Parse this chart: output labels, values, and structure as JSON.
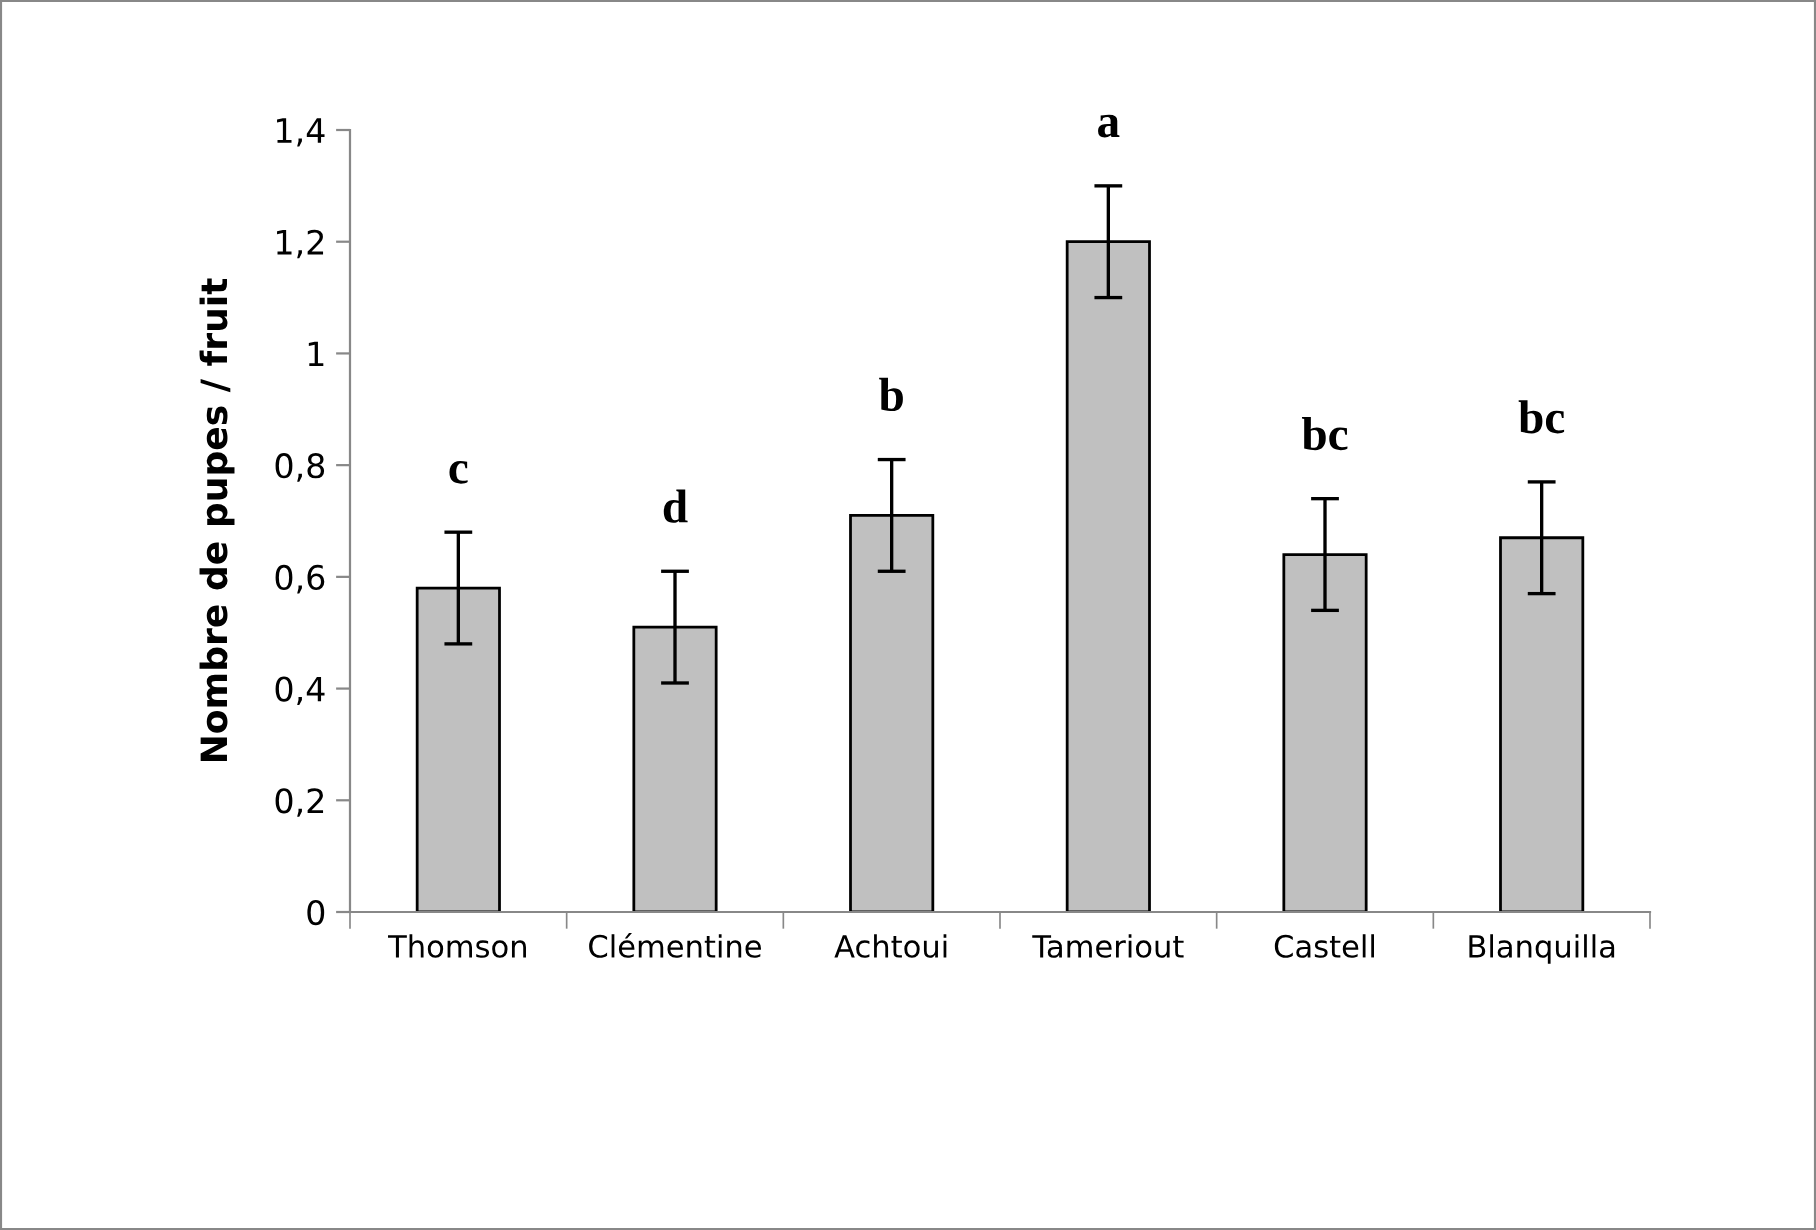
{
  "chart_data": {
    "type": "bar",
    "ylabel": "Nombre de pupes / fruit",
    "categories": [
      "Thomson",
      "Clémentine",
      "Achtoui",
      "Tameriout",
      "Castell",
      "Blanquilla"
    ],
    "values": [
      0.58,
      0.51,
      0.71,
      1.2,
      0.64,
      0.67
    ],
    "errors": [
      0.1,
      0.1,
      0.1,
      0.1,
      0.1,
      0.1
    ],
    "color": "#c0c0c0",
    "ylim": [
      0,
      1.4
    ],
    "yticks": [
      {
        "value": 0,
        "label": "0"
      },
      {
        "value": 0.2,
        "label": "0,2"
      },
      {
        "value": 0.4,
        "label": "0,4"
      },
      {
        "value": 0.6,
        "label": "0,6"
      },
      {
        "value": 0.8,
        "label": "0,8"
      },
      {
        "value": 1,
        "label": "1"
      },
      {
        "value": 1.2,
        "label": "1,2"
      },
      {
        "value": 1.4,
        "label": "1,4"
      }
    ],
    "grid": false,
    "legend": false,
    "annotations": [
      {
        "text": "c",
        "x": "Thomson",
        "y": 0.68
      },
      {
        "text": "d",
        "x": "Clémentine",
        "y": 0.61
      },
      {
        "text": "b",
        "x": "Achtoui",
        "y": 0.81
      },
      {
        "text": "a",
        "x": "Tameriout",
        "y": 1.3
      },
      {
        "text": "bc",
        "x": "Castell",
        "y": 0.74
      },
      {
        "text": "bc",
        "x": "Blanquilla",
        "y": 0.77
      }
    ]
  }
}
